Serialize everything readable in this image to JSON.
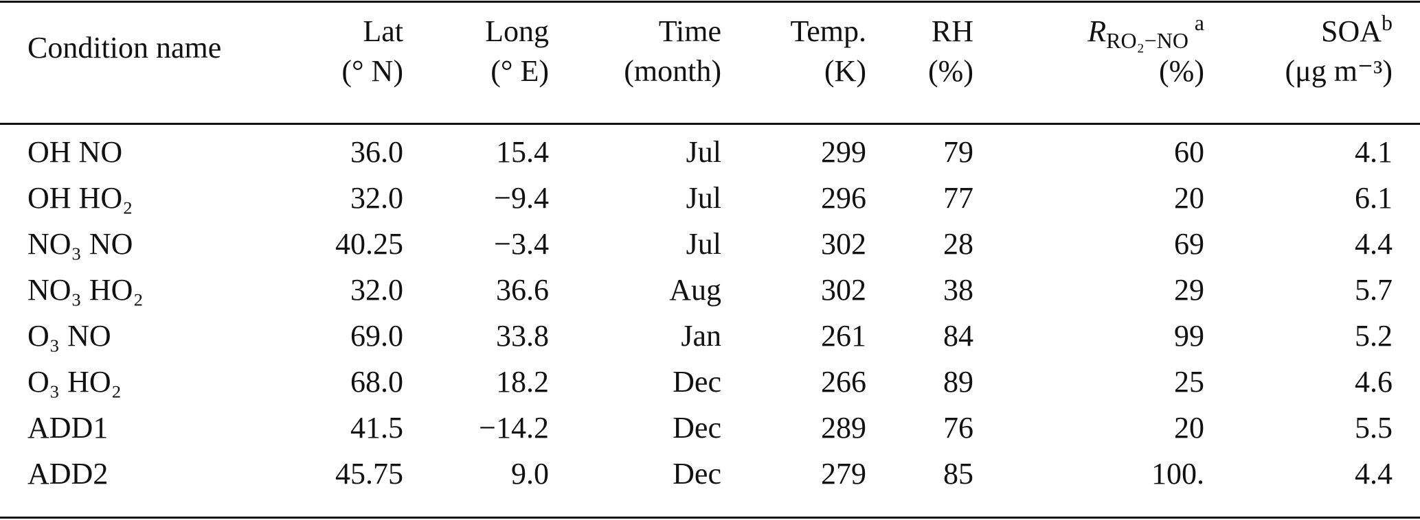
{
  "table": {
    "columns": [
      {
        "name": "Condition name"
      },
      {
        "name": "Lat",
        "unit": "(° N)"
      },
      {
        "name": "Long",
        "unit": "(° E)"
      },
      {
        "name": "Time",
        "unit": "(month)"
      },
      {
        "name": "Temp.",
        "unit": "(K)"
      },
      {
        "name": "RH",
        "unit": "(%)"
      },
      {
        "name": "R",
        "sub": "RO₂−NO",
        "sup": "a",
        "unit": "(%)"
      },
      {
        "name": "SOA",
        "sup": "b",
        "unit": "(μg m⁻³)"
      }
    ],
    "rows": [
      [
        "OH NO",
        "36.0",
        "15.4",
        "Jul",
        "299",
        "79",
        "60",
        "4.1"
      ],
      [
        "OH HO₂",
        "32.0",
        "−9.4",
        "Jul",
        "296",
        "77",
        "20",
        "6.1"
      ],
      [
        "NO₃ NO",
        "40.25",
        "−3.4",
        "Jul",
        "302",
        "28",
        "69",
        "4.4"
      ],
      [
        "NO₃ HO₂",
        "32.0",
        "36.6",
        "Aug",
        "302",
        "38",
        "29",
        "5.7"
      ],
      [
        "O₃ NO",
        "69.0",
        "33.8",
        "Jan",
        "261",
        "84",
        "99",
        "5.2"
      ],
      [
        "O₃ HO₂",
        "68.0",
        "18.2",
        "Dec",
        "266",
        "89",
        "25",
        "4.6"
      ],
      [
        "ADD1",
        "41.5",
        "−14.2",
        "Dec",
        "289",
        "76",
        "20",
        "5.5"
      ],
      [
        "ADD2",
        "45.75",
        "9.0",
        "Dec",
        "279",
        "85",
        "100.",
        "4.4"
      ]
    ]
  }
}
